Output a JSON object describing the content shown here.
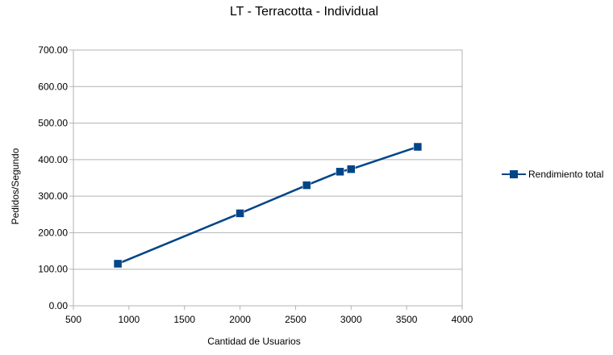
{
  "chart_data": {
    "type": "scatter",
    "title": "LT - Terracotta - Individual",
    "xlabel": "Cantidad de Usuarios",
    "ylabel": "Pedidos/Segundo",
    "xlim": [
      500,
      4000
    ],
    "ylim": [
      0,
      700
    ],
    "x_ticks": [
      500,
      1000,
      1500,
      2000,
      2500,
      3000,
      3500,
      4000
    ],
    "y_ticks": [
      0,
      100,
      200,
      300,
      400,
      500,
      600,
      700
    ],
    "y_tick_labels": [
      "0.00",
      "100.00",
      "200.00",
      "300.00",
      "400.00",
      "500.00",
      "600.00",
      "700.00"
    ],
    "grid": "horizontal",
    "legend_position": "right",
    "series": [
      {
        "name": "Rendimiento total",
        "color": "#004586",
        "marker": "square",
        "connected": true,
        "points": [
          {
            "x": 900,
            "y": 115
          },
          {
            "x": 2000,
            "y": 253
          },
          {
            "x": 2600,
            "y": 330
          },
          {
            "x": 2900,
            "y": 367
          },
          {
            "x": 3000,
            "y": 374
          },
          {
            "x": 3600,
            "y": 435
          }
        ]
      }
    ]
  }
}
